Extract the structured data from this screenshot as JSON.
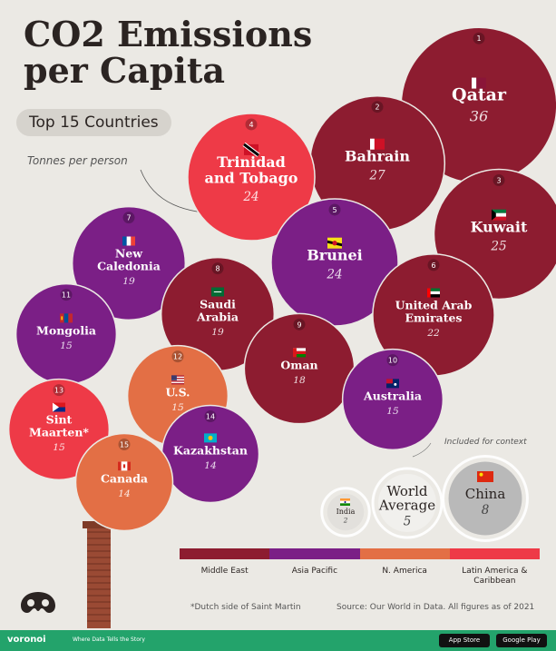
{
  "title_line1": "CO2 Emissions",
  "title_line2": "per Capita",
  "subtitle": "Top 15 Countries",
  "unit_note": "Tonnes per person",
  "context_note": "Included for context",
  "footnote": "*Dutch side of Saint Martin",
  "source": "Source: Our World in Data. All figures as of 2021",
  "brand": "voronoi",
  "tagline": "Where Data Tells the Story",
  "store_buttons": [
    "App Store",
    "Google Play"
  ],
  "colors": {
    "Middle East": "#8d1c30",
    "Asia Pacific": "#7b1f86",
    "N. America": "#e36f45",
    "Latin America & Caribbean": "#ee3a47",
    "context": "#b9b9b9",
    "background": "#ebe9e4",
    "footer": "#23a36b"
  },
  "legend": [
    "Middle East",
    "Asia Pacific",
    "N. America",
    "Latin America & Caribbean"
  ],
  "chart_data": {
    "type": "bubble",
    "unit": "Tonnes per person",
    "countries": [
      {
        "rank": "1",
        "name": "Qatar",
        "value": 36,
        "region": "Middle East",
        "flag": "qa"
      },
      {
        "rank": "2",
        "name": "Bahrain",
        "value": 27,
        "region": "Middle East",
        "flag": "bh"
      },
      {
        "rank": "3",
        "name": "Kuwait",
        "value": 25,
        "region": "Middle East",
        "flag": "kw"
      },
      {
        "rank": "4",
        "name": "Trinidad and Tobago",
        "value": 24,
        "region": "Latin America & Caribbean",
        "flag": "tt"
      },
      {
        "rank": "5",
        "name": "Brunei",
        "value": 24,
        "region": "Asia Pacific",
        "flag": "bn"
      },
      {
        "rank": "6",
        "name": "United Arab Emirates",
        "value": 22,
        "region": "Middle East",
        "flag": "ae"
      },
      {
        "rank": "7",
        "name": "New Caledonia",
        "value": 19,
        "region": "Asia Pacific",
        "flag": "fr"
      },
      {
        "rank": "8",
        "name": "Saudi Arabia",
        "value": 19,
        "region": "Middle East",
        "flag": "sa"
      },
      {
        "rank": "9",
        "name": "Oman",
        "value": 18,
        "region": "Middle East",
        "flag": "om"
      },
      {
        "rank": "10",
        "name": "Australia",
        "value": 15,
        "region": "Asia Pacific",
        "flag": "au"
      },
      {
        "rank": "11",
        "name": "Mongolia",
        "value": 15,
        "region": "Asia Pacific",
        "flag": "mn"
      },
      {
        "rank": "12",
        "name": "U.S.",
        "value": 15,
        "region": "N. America",
        "flag": "us"
      },
      {
        "rank": "13",
        "name": "Sint Maarten*",
        "value": 15,
        "region": "Latin America & Caribbean",
        "flag": "sx"
      },
      {
        "rank": "14",
        "name": "Kazakhstan",
        "value": 14,
        "region": "Asia Pacific",
        "flag": "kz"
      },
      {
        "rank": "15",
        "name": "Canada",
        "value": 14,
        "region": "N. America",
        "flag": "ca"
      }
    ],
    "context": [
      {
        "name": "China",
        "value": 8,
        "flag": "cn"
      },
      {
        "name": "World Average",
        "value": 5,
        "flag": ""
      },
      {
        "name": "India",
        "value": 2,
        "flag": "in"
      }
    ]
  }
}
